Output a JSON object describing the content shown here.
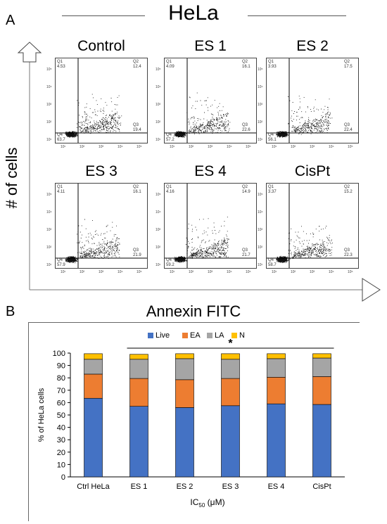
{
  "header": {
    "title": "HeLa",
    "panel_a": "A",
    "panel_b": "B"
  },
  "flow": {
    "ylabel": "# of cells",
    "xlabel": "Annexin FITC",
    "axis_ticks": [
      "10¹",
      "10²",
      "10³",
      "10⁴",
      "10⁵"
    ],
    "plots": [
      {
        "title": "Control",
        "q1_label": "Q1",
        "q1": "4.53",
        "q2_label": "Q2",
        "q2": "12.4",
        "q3_label": "Q3",
        "q3": "19.4",
        "q4_label": "Q4",
        "q4": "63.7"
      },
      {
        "title": "ES 1",
        "q1_label": "Q1",
        "q1": "4.09",
        "q2_label": "Q2",
        "q2": "16.1",
        "q3_label": "Q3",
        "q3": "22.6",
        "q4_label": "Q4",
        "q4": "57.2"
      },
      {
        "title": "ES 2",
        "q1_label": "Q1",
        "q1": "3.93",
        "q2_label": "Q2",
        "q2": "17.5",
        "q3_label": "Q3",
        "q3": "22.4",
        "q4_label": "Q4",
        "q4": "56.1"
      },
      {
        "title": "ES 3",
        "q1_label": "Q1",
        "q1": "4.11",
        "q2_label": "Q2",
        "q2": "16.1",
        "q3_label": "Q3",
        "q3": "21.9",
        "q4_label": "Q4",
        "q4": "57.9"
      },
      {
        "title": "ES 4",
        "q1_label": "Q1",
        "q1": "4.16",
        "q2_label": "Q2",
        "q2": "14.9",
        "q3_label": "Q3",
        "q3": "21.7",
        "q4_label": "Q4",
        "q4": "59.2"
      },
      {
        "title": "CisPt",
        "q1_label": "Q1",
        "q1": "3.37",
        "q2_label": "Q2",
        "q2": "15.2",
        "q3_label": "Q3",
        "q3": "22.3",
        "q4_label": "Q4",
        "q4": "58.7"
      }
    ]
  },
  "chart_data": {
    "type": "bar",
    "stacked": true,
    "categories": [
      "Ctrl HeLa",
      "ES 1",
      "ES 2",
      "ES 3",
      "ES 4",
      "CisPt"
    ],
    "series": [
      {
        "name": "Live",
        "color": "#4472C4",
        "values": [
          63.5,
          57,
          56,
          57.5,
          59,
          58.5
        ]
      },
      {
        "name": "EA",
        "color": "#ED7D31",
        "values": [
          19.5,
          22.5,
          22.5,
          22,
          21.5,
          22.5
        ]
      },
      {
        "name": "LA",
        "color": "#A5A5A5",
        "values": [
          12,
          15.5,
          17,
          15.5,
          15,
          15
        ]
      },
      {
        "name": "N",
        "color": "#FFC000",
        "values": [
          4.5,
          4,
          4,
          4.5,
          4,
          3.5
        ]
      }
    ],
    "ylabel": "% of HeLa cells",
    "xlabel": "IC50 (μM)",
    "ylim": [
      0,
      100
    ],
    "yticks": [
      0,
      10,
      20,
      30,
      40,
      50,
      60,
      70,
      80,
      90,
      100
    ],
    "legend_position": "top",
    "grid": false,
    "significance_mark": "*"
  }
}
